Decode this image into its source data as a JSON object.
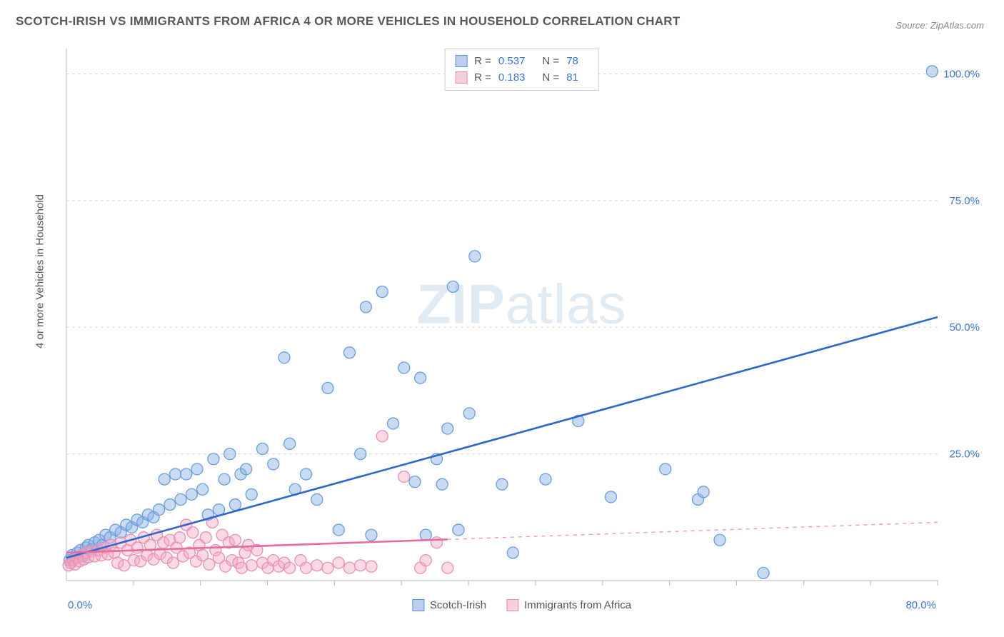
{
  "title": "SCOTCH-IRISH VS IMMIGRANTS FROM AFRICA 4 OR MORE VEHICLES IN HOUSEHOLD CORRELATION CHART",
  "source_label": "Source:",
  "source_value": "ZipAtlas.com",
  "watermark": "ZIPatlas",
  "y_axis_label": "4 or more Vehicles in Household",
  "chart": {
    "type": "scatter",
    "background_color": "#ffffff",
    "grid_color": "#d7d7d7",
    "grid_dash": "4,4",
    "axis_line_color": "#b9b9b9",
    "tick_label_color": "#3b76d6",
    "tick_fontsize": 15,
    "xlim": [
      0,
      80
    ],
    "ylim": [
      0,
      105
    ],
    "x_ticks": [
      0,
      80
    ],
    "x_tick_labels": [
      "0.0%",
      "80.0%"
    ],
    "y_ticks": [
      25,
      50,
      75,
      100
    ],
    "y_tick_labels": [
      "25.0%",
      "50.0%",
      "75.0%",
      "100.0%"
    ],
    "marker_radius": 8,
    "marker_stroke_width": 1.3,
    "trend_line_width": 2.6,
    "series": [
      {
        "name": "Scotch-Irish",
        "fill": "rgba(136,176,228,0.45)",
        "stroke": "#6a9bdc",
        "line_color": "#2f66c8",
        "R": "0.537",
        "N": "78",
        "trend": {
          "x1": 0,
          "y1": 4.5,
          "x2": 80,
          "y2": 52
        },
        "trend_solid_until_x": 80,
        "points": [
          [
            0.3,
            4
          ],
          [
            0.5,
            5
          ],
          [
            0.8,
            4.5
          ],
          [
            1,
            5.5
          ],
          [
            1.3,
            6
          ],
          [
            1.5,
            4.8
          ],
          [
            1.8,
            6.5
          ],
          [
            2,
            7
          ],
          [
            2.3,
            6.2
          ],
          [
            2.6,
            7.5
          ],
          [
            3,
            8
          ],
          [
            3.3,
            7
          ],
          [
            3.6,
            9
          ],
          [
            4,
            8.5
          ],
          [
            4.5,
            10
          ],
          [
            5,
            9.5
          ],
          [
            5.5,
            11
          ],
          [
            6,
            10.5
          ],
          [
            6.5,
            12
          ],
          [
            7,
            11.5
          ],
          [
            7.5,
            13
          ],
          [
            8,
            12.5
          ],
          [
            8.5,
            14
          ],
          [
            9,
            20
          ],
          [
            9.5,
            15
          ],
          [
            10,
            21
          ],
          [
            10.5,
            16
          ],
          [
            11,
            21
          ],
          [
            11.5,
            17
          ],
          [
            12,
            22
          ],
          [
            12.5,
            18
          ],
          [
            13,
            13
          ],
          [
            13.5,
            24
          ],
          [
            14,
            14
          ],
          [
            14.5,
            20
          ],
          [
            15,
            25
          ],
          [
            15.5,
            15
          ],
          [
            16,
            21
          ],
          [
            16.5,
            22
          ],
          [
            17,
            17
          ],
          [
            18,
            26
          ],
          [
            19,
            23
          ],
          [
            20,
            44
          ],
          [
            20.5,
            27
          ],
          [
            21,
            18
          ],
          [
            22,
            21
          ],
          [
            23,
            16
          ],
          [
            24,
            38
          ],
          [
            25,
            10
          ],
          [
            26,
            45
          ],
          [
            27,
            25
          ],
          [
            27.5,
            54
          ],
          [
            28,
            9
          ],
          [
            29,
            57
          ],
          [
            30,
            31
          ],
          [
            31,
            42
          ],
          [
            32,
            19.5
          ],
          [
            32.5,
            40
          ],
          [
            33,
            9
          ],
          [
            34,
            24
          ],
          [
            34.5,
            19
          ],
          [
            35,
            30
          ],
          [
            35.5,
            58
          ],
          [
            36,
            10
          ],
          [
            37,
            33
          ],
          [
            37.5,
            64
          ],
          [
            40,
            19
          ],
          [
            41,
            5.5
          ],
          [
            44,
            20
          ],
          [
            47,
            31.5
          ],
          [
            50,
            16.5
          ],
          [
            55,
            22
          ],
          [
            58,
            16
          ],
          [
            58.5,
            17.5
          ],
          [
            60,
            8
          ],
          [
            64,
            1.5
          ],
          [
            79.5,
            100.5
          ]
        ]
      },
      {
        "name": "Immigrants from Africa",
        "fill": "rgba(244,165,195,0.42)",
        "stroke": "#e88fb2",
        "line_color": "#e76aa0",
        "R": "0.183",
        "N": "81",
        "trend": {
          "x1": 0,
          "y1": 5.5,
          "x2": 80,
          "y2": 11.5
        },
        "trend_solid_until_x": 35,
        "points": [
          [
            0.2,
            3
          ],
          [
            0.4,
            3.5
          ],
          [
            0.6,
            4
          ],
          [
            0.8,
            3.2
          ],
          [
            1,
            4.5
          ],
          [
            1.2,
            3.8
          ],
          [
            1.4,
            5
          ],
          [
            1.6,
            4.2
          ],
          [
            1.8,
            5.5
          ],
          [
            2,
            4.6
          ],
          [
            2.3,
            5.8
          ],
          [
            2.6,
            4.8
          ],
          [
            2.9,
            6
          ],
          [
            3.2,
            5
          ],
          [
            3.5,
            6.5
          ],
          [
            3.8,
            5.2
          ],
          [
            4.1,
            7
          ],
          [
            4.4,
            5.5
          ],
          [
            4.7,
            3.5
          ],
          [
            5,
            7.5
          ],
          [
            5.3,
            3
          ],
          [
            5.6,
            6
          ],
          [
            5.9,
            8
          ],
          [
            6.2,
            4
          ],
          [
            6.5,
            6.5
          ],
          [
            6.8,
            3.8
          ],
          [
            7.1,
            8.5
          ],
          [
            7.4,
            5
          ],
          [
            7.7,
            7
          ],
          [
            8,
            4.2
          ],
          [
            8.3,
            9
          ],
          [
            8.6,
            5.3
          ],
          [
            8.9,
            7.5
          ],
          [
            9.2,
            4.5
          ],
          [
            9.5,
            8
          ],
          [
            9.8,
            3.5
          ],
          [
            10.1,
            6.5
          ],
          [
            10.4,
            8.5
          ],
          [
            10.7,
            4.8
          ],
          [
            11,
            11
          ],
          [
            11.3,
            5.5
          ],
          [
            11.6,
            9.5
          ],
          [
            11.9,
            3.8
          ],
          [
            12.2,
            7
          ],
          [
            12.5,
            5
          ],
          [
            12.8,
            8.5
          ],
          [
            13.1,
            3.2
          ],
          [
            13.4,
            11.5
          ],
          [
            13.7,
            6
          ],
          [
            14,
            4.5
          ],
          [
            14.3,
            9
          ],
          [
            14.6,
            2.8
          ],
          [
            14.9,
            7.5
          ],
          [
            15.2,
            4
          ],
          [
            15.5,
            8
          ],
          [
            15.8,
            3.5
          ],
          [
            16.1,
            2.5
          ],
          [
            16.4,
            5.5
          ],
          [
            16.7,
            7
          ],
          [
            17,
            3
          ],
          [
            17.5,
            6
          ],
          [
            18,
            3.5
          ],
          [
            18.5,
            2.5
          ],
          [
            19,
            4
          ],
          [
            19.5,
            2.8
          ],
          [
            20,
            3.5
          ],
          [
            20.5,
            2.5
          ],
          [
            21.5,
            4
          ],
          [
            22,
            2.5
          ],
          [
            23,
            3
          ],
          [
            24,
            2.5
          ],
          [
            25,
            3.5
          ],
          [
            26,
            2.5
          ],
          [
            27,
            3
          ],
          [
            28,
            2.8
          ],
          [
            29,
            28.5
          ],
          [
            31,
            20.5
          ],
          [
            32.5,
            2.5
          ],
          [
            33,
            4
          ],
          [
            34,
            7.5
          ],
          [
            35,
            2.5
          ]
        ]
      }
    ],
    "r_legend_labels": {
      "R": "R =",
      "N": "N ="
    },
    "legend_position": "top-center",
    "series_legend_position": "bottom-center"
  }
}
